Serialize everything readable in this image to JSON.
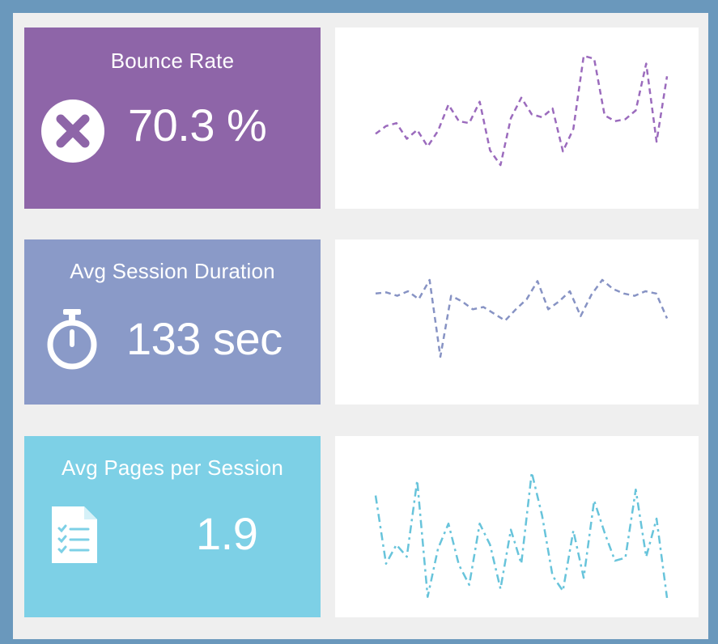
{
  "kpis": [
    {
      "title": "Bounce Rate",
      "value": "70.3 %",
      "icon": "x-circle-icon",
      "color": "#8e65a8",
      "line_color": "#9b6bbd",
      "line_style": "dashed",
      "trend": [
        52,
        60,
        63,
        47,
        56,
        39,
        55,
        82,
        65,
        63,
        85,
        35,
        20,
        68,
        89,
        72,
        69,
        78,
        34,
        57,
        132,
        129,
        71,
        65,
        67,
        76,
        124,
        44,
        111
      ]
    },
    {
      "title": "Avg Session Duration",
      "value": "133 sec",
      "icon": "stopwatch-icon",
      "color": "#8a9ac8",
      "line_color": "#8793c4",
      "line_style": "dashed",
      "trend": [
        100,
        101,
        98,
        102,
        95,
        112,
        44,
        98,
        93,
        86,
        88,
        82,
        76,
        86,
        95,
        111,
        86,
        93,
        102,
        80,
        99,
        112,
        104,
        100,
        98,
        102,
        100,
        78
      ]
    },
    {
      "title": "Avg Pages per Session",
      "value": "1.9",
      "icon": "document-list-icon",
      "color": "#7dd0e6",
      "line_color": "#68c4db",
      "line_style": "dashdot",
      "trend": [
        125,
        57,
        76,
        64,
        140,
        24,
        72,
        97,
        56,
        36,
        97,
        76,
        32,
        91,
        57,
        148,
        105,
        45,
        30,
        90,
        43,
        120,
        88,
        60,
        63,
        131,
        64,
        102,
        23
      ]
    }
  ]
}
